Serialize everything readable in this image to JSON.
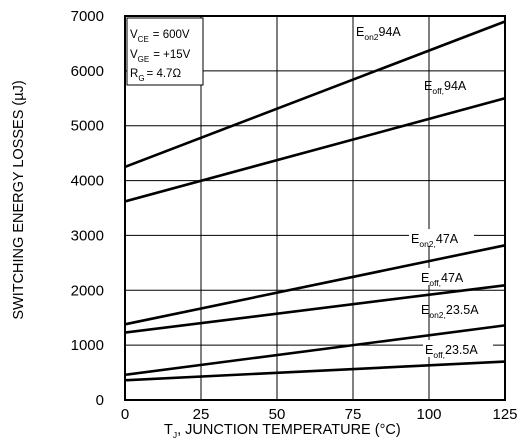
{
  "chart_data": {
    "type": "line",
    "title": "",
    "xlabel": {
      "main": "T",
      "sub": "J",
      "rest": ", JUNCTION TEMPERATURE (°C)"
    },
    "ylabel": "SWITCHING ENERGY LOSSES (µJ)",
    "xlim": [
      0,
      125
    ],
    "ylim": [
      0,
      7000
    ],
    "xticks": [
      0,
      25,
      50,
      75,
      100,
      125
    ],
    "yticks": [
      0,
      1000,
      2000,
      3000,
      4000,
      5000,
      6000,
      7000
    ],
    "grid": true,
    "conditions": [
      {
        "main": "V",
        "sub": "CE",
        "value": "= 600V"
      },
      {
        "main": "V",
        "sub": "GE",
        "value": "= +15V"
      },
      {
        "main": "R",
        "sub": "G",
        "value": "= 4.7Ω"
      }
    ],
    "series": [
      {
        "name": {
          "main": "E",
          "sub": "on2",
          "rest": "94A"
        },
        "x": [
          0,
          125
        ],
        "y": [
          4250,
          6900
        ]
      },
      {
        "name": {
          "main": "E",
          "sub": "off,",
          "rest": "94A"
        },
        "x": [
          0,
          125
        ],
        "y": [
          3620,
          5500
        ]
      },
      {
        "name": {
          "main": "E",
          "sub": "on2,",
          "rest": "47A"
        },
        "x": [
          0,
          125
        ],
        "y": [
          1380,
          2820
        ]
      },
      {
        "name": {
          "main": "E",
          "sub": "off,",
          "rest": "47A"
        },
        "x": [
          0,
          125
        ],
        "y": [
          1230,
          2090
        ]
      },
      {
        "name": {
          "main": "E",
          "sub": "on2,",
          "rest": "23.5A"
        },
        "x": [
          0,
          125
        ],
        "y": [
          460,
          1360
        ]
      },
      {
        "name": {
          "main": "E",
          "sub": "off,",
          "rest": "23.5A"
        },
        "x": [
          0,
          125
        ],
        "y": [
          360,
          700
        ]
      }
    ]
  }
}
